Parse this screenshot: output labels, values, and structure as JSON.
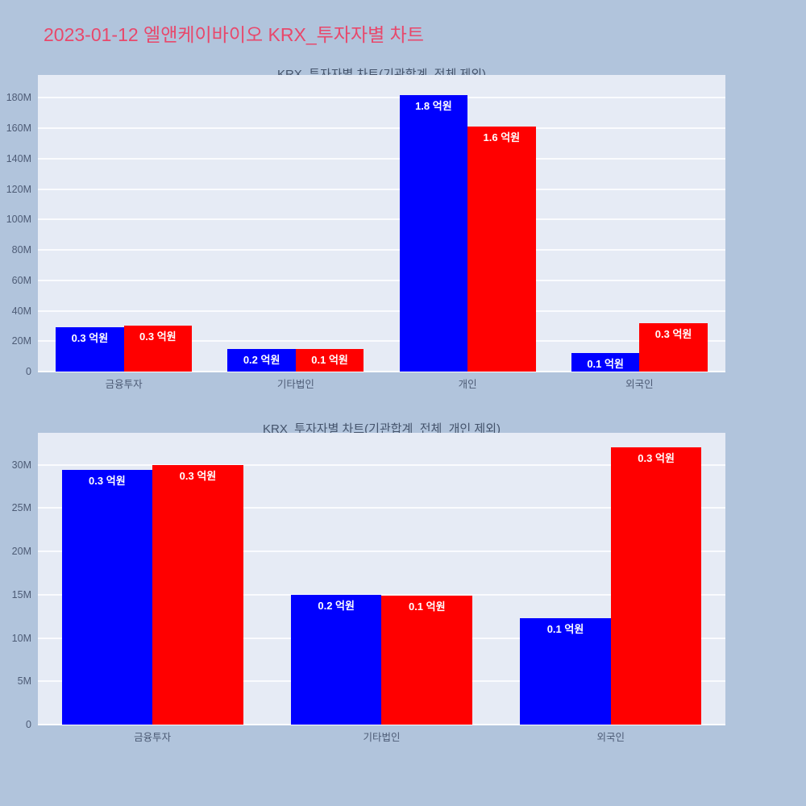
{
  "page": {
    "title": "2023-01-12 엘앤케이바이오 KRX_투자자별 차트",
    "title_color": "#e8486b",
    "background_color": "#b1c4dc"
  },
  "chart_data": [
    {
      "type": "bar",
      "title": "KRX_투자자별 차트(기관합계_전체 제외)",
      "categories": [
        "금융투자",
        "기타법인",
        "개인",
        "외국인"
      ],
      "series": [
        {
          "name": "blue",
          "color": "#0000ff",
          "values_M": [
            29.4,
            15.0,
            182.0,
            12.3
          ],
          "bar_labels": [
            "0.3 억원",
            "0.2 억원",
            "1.8 억원",
            "0.1 억원"
          ]
        },
        {
          "name": "red",
          "color": "#ff0000",
          "values_M": [
            30.0,
            14.9,
            161.0,
            32.0
          ],
          "bar_labels": [
            "0.3 억원",
            "0.1 억원",
            "1.6 억원",
            "0.3 억원"
          ]
        }
      ],
      "xlabel": "",
      "ylabel": "",
      "ylim_M": [
        0,
        195
      ],
      "yticks": [
        {
          "value_M": 0,
          "label": "0"
        },
        {
          "value_M": 20,
          "label": "20M"
        },
        {
          "value_M": 40,
          "label": "40M"
        },
        {
          "value_M": 60,
          "label": "60M"
        },
        {
          "value_M": 80,
          "label": "80M"
        },
        {
          "value_M": 100,
          "label": "100M"
        },
        {
          "value_M": 120,
          "label": "120M"
        },
        {
          "value_M": 140,
          "label": "140M"
        },
        {
          "value_M": 160,
          "label": "160M"
        },
        {
          "value_M": 180,
          "label": "180M"
        }
      ],
      "grid": true,
      "legend": false,
      "plot_background": "#e6ebf5",
      "gridline_color": "#fafbfe"
    },
    {
      "type": "bar",
      "title": "KRX_투자자별 차트(기관합계_전체_개인 제외)",
      "categories": [
        "금융투자",
        "기타법인",
        "외국인"
      ],
      "series": [
        {
          "name": "blue",
          "color": "#0000ff",
          "values_M": [
            29.4,
            15.0,
            12.3
          ],
          "bar_labels": [
            "0.3 억원",
            "0.2 억원",
            "0.1 억원"
          ]
        },
        {
          "name": "red",
          "color": "#ff0000",
          "values_M": [
            30.0,
            14.9,
            32.0
          ],
          "bar_labels": [
            "0.3 억원",
            "0.1 억원",
            "0.3 억원"
          ]
        }
      ],
      "xlabel": "",
      "ylabel": "",
      "ylim_M": [
        0,
        33.7
      ],
      "yticks": [
        {
          "value_M": 0,
          "label": "0"
        },
        {
          "value_M": 5,
          "label": "5M"
        },
        {
          "value_M": 10,
          "label": "10M"
        },
        {
          "value_M": 15,
          "label": "15M"
        },
        {
          "value_M": 20,
          "label": "20M"
        },
        {
          "value_M": 25,
          "label": "25M"
        },
        {
          "value_M": 30,
          "label": "30M"
        }
      ],
      "grid": true,
      "legend": false,
      "plot_background": "#e6ebf5",
      "gridline_color": "#fafbfe"
    }
  ]
}
